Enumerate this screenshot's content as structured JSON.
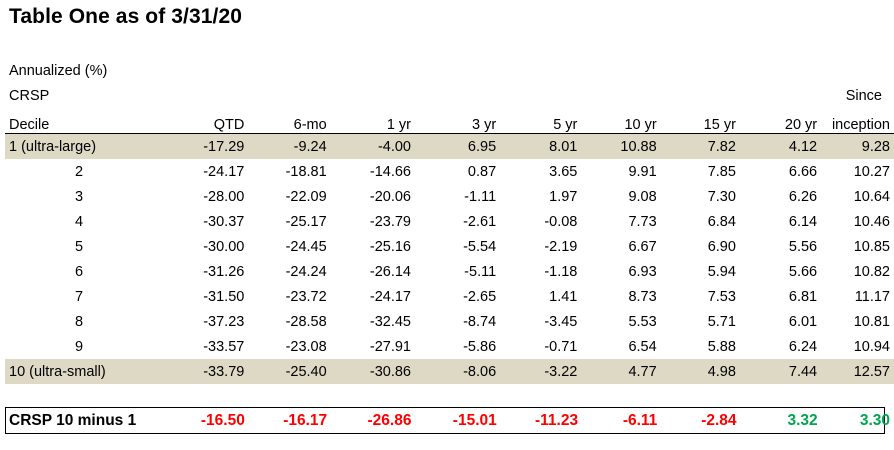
{
  "title": "Table One as of 3/31/20",
  "header_lines": [
    "Annualized (%)",
    "CRSP"
  ],
  "since_label_top": "Since",
  "columns": [
    "Decile",
    "QTD",
    "6-mo",
    "1 yr",
    "3 yr",
    "5 yr",
    "10 yr",
    "15 yr",
    "20 yr",
    "inception"
  ],
  "rows": [
    {
      "label": "1 (ultra-large)",
      "values": [
        "-17.29",
        "-9.24",
        "-4.00",
        "6.95",
        "8.01",
        "10.88",
        "7.82",
        "4.12",
        "9.28"
      ]
    },
    {
      "label": "2",
      "values": [
        "-24.17",
        "-18.81",
        "-14.66",
        "0.87",
        "3.65",
        "9.91",
        "7.85",
        "6.66",
        "10.27"
      ]
    },
    {
      "label": "3",
      "values": [
        "-28.00",
        "-22.09",
        "-20.06",
        "-1.11",
        "1.97",
        "9.08",
        "7.30",
        "6.26",
        "10.64"
      ]
    },
    {
      "label": "4",
      "values": [
        "-30.37",
        "-25.17",
        "-23.79",
        "-2.61",
        "-0.08",
        "7.73",
        "6.84",
        "6.14",
        "10.46"
      ]
    },
    {
      "label": "5",
      "values": [
        "-30.00",
        "-24.45",
        "-25.16",
        "-5.54",
        "-2.19",
        "6.67",
        "6.90",
        "5.56",
        "10.85"
      ]
    },
    {
      "label": "6",
      "values": [
        "-31.26",
        "-24.24",
        "-26.14",
        "-5.11",
        "-1.18",
        "6.93",
        "5.94",
        "5.66",
        "10.82"
      ]
    },
    {
      "label": "7",
      "values": [
        "-31.50",
        "-23.72",
        "-24.17",
        "-2.65",
        "1.41",
        "8.73",
        "7.53",
        "6.81",
        "11.17"
      ]
    },
    {
      "label": "8",
      "values": [
        "-37.23",
        "-28.58",
        "-32.45",
        "-8.74",
        "-3.45",
        "5.53",
        "5.71",
        "6.01",
        "10.81"
      ]
    },
    {
      "label": "9",
      "values": [
        "-33.57",
        "-23.08",
        "-27.91",
        "-5.86",
        "-0.71",
        "6.54",
        "5.88",
        "6.24",
        "10.94"
      ]
    },
    {
      "label": "10 (ultra-small)",
      "values": [
        "-33.79",
        "-25.40",
        "-30.86",
        "-8.06",
        "-3.22",
        "4.77",
        "4.98",
        "7.44",
        "12.57"
      ]
    }
  ],
  "difference_row": {
    "label": "CRSP 10 minus 1",
    "values": [
      "-16.50",
      "-16.17",
      "-26.86",
      "-15.01",
      "-11.23",
      "-6.11",
      "-2.84",
      "3.32",
      "3.30"
    ]
  },
  "colors": {
    "negative": "#ff0000",
    "positive": "#00a550",
    "row_shading": "#ddd9c4"
  }
}
